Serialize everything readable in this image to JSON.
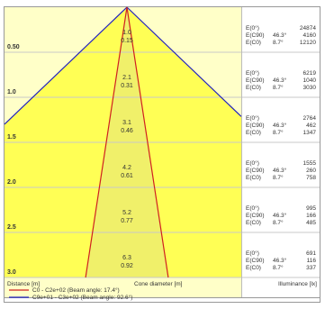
{
  "chart_data": {
    "type": "cone-diagram",
    "rows": [
      {
        "distance": "0.50",
        "diameter_c0": "1.0",
        "diameter_c90": "0.15",
        "illuminance": [
          {
            "label": "E(0°)",
            "angle": "",
            "value": "24874"
          },
          {
            "label": "E(C90)",
            "angle": "46.3°",
            "value": "4160"
          },
          {
            "label": "E(C0)",
            "angle": "8.7°",
            "value": "12120"
          }
        ]
      },
      {
        "distance": "1.0",
        "diameter_c0": "2.1",
        "diameter_c90": "0.31",
        "illuminance": [
          {
            "label": "E(0°)",
            "angle": "",
            "value": "6219"
          },
          {
            "label": "E(C90)",
            "angle": "46.3°",
            "value": "1040"
          },
          {
            "label": "E(C0)",
            "angle": "8.7°",
            "value": "3030"
          }
        ]
      },
      {
        "distance": "1.5",
        "diameter_c0": "3.1",
        "diameter_c90": "0.46",
        "illuminance": [
          {
            "label": "E(0°)",
            "angle": "",
            "value": "2764"
          },
          {
            "label": "E(C90)",
            "angle": "46.3°",
            "value": "462"
          },
          {
            "label": "E(C0)",
            "angle": "8.7°",
            "value": "1347"
          }
        ]
      },
      {
        "distance": "2.0",
        "diameter_c0": "4.2",
        "diameter_c90": "0.61",
        "illuminance": [
          {
            "label": "E(0°)",
            "angle": "",
            "value": "1555"
          },
          {
            "label": "E(C90)",
            "angle": "46.3°",
            "value": "260"
          },
          {
            "label": "E(C0)",
            "angle": "8.7°",
            "value": "758"
          }
        ]
      },
      {
        "distance": "2.5",
        "diameter_c0": "5.2",
        "diameter_c90": "0.77",
        "illuminance": [
          {
            "label": "E(0°)",
            "angle": "",
            "value": "995"
          },
          {
            "label": "E(C90)",
            "angle": "46.3°",
            "value": "166"
          },
          {
            "label": "E(C0)",
            "angle": "8.7°",
            "value": "485"
          }
        ]
      },
      {
        "distance": "3.0",
        "diameter_c0": "6.3",
        "diameter_c90": "0.92",
        "illuminance": [
          {
            "label": "E(0°)",
            "angle": "",
            "value": "691"
          },
          {
            "label": "E(C90)",
            "angle": "46.3°",
            "value": "116"
          },
          {
            "label": "E(C0)",
            "angle": "8.7°",
            "value": "337"
          }
        ]
      }
    ],
    "max_distance": 3.0,
    "axis_labels": {
      "distance": "Distance [m]",
      "diameter": "Cone diameter [m]",
      "illuminance": "Illuminance [lx]"
    },
    "legend": [
      {
        "name": "C0 - C2e+02 (Beam angle: 17.4°)",
        "color": "#d02020"
      },
      {
        "name": "C9e+01 - C3e+02 (Beam angle: 92.6°)",
        "color": "#2020c0"
      }
    ],
    "c0_beam_angle_deg": 17.4,
    "c90_beam_angle_deg": 92.6,
    "colors": {
      "wide_cone_fill": "#ffff55",
      "narrow_cone_fill": "#f0f06a",
      "band_fill": "#ffffc8",
      "c0_line": "#d02020",
      "c90_line": "#2020c0",
      "grid": "#c8c8c8",
      "text": "#333333"
    }
  }
}
